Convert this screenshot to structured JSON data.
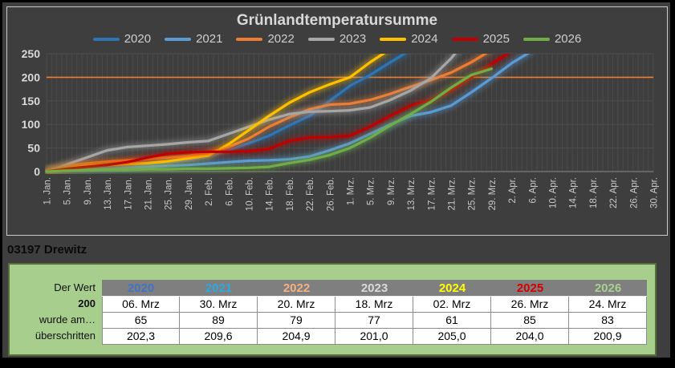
{
  "station": {
    "label": "03197 Drewitz"
  },
  "chart_data": {
    "type": "line",
    "title": "Grünlandtemperatursumme",
    "xlabel": "",
    "ylabel": "",
    "ylim": [
      0,
      250
    ],
    "y_ticks": [
      0,
      50,
      100,
      150,
      200,
      250
    ],
    "grid": "daily vertical gridlines and horizontal gridlines every 50, on dark background",
    "legend_position": "top",
    "x_step_days": 4,
    "x_tick_labels": [
      "1. Jan.",
      "5. Jan.",
      "9. Jan.",
      "13. Jan.",
      "17. Jan.",
      "21. Jan.",
      "25. Jan.",
      "29. Jan.",
      "2. Feb.",
      "6. Feb.",
      "10. Feb.",
      "14. Feb.",
      "18. Feb.",
      "22. Feb.",
      "26. Feb.",
      "1. Mrz.",
      "5. Mrz.",
      "9. Mrz.",
      "13. Mrz.",
      "17. Mrz.",
      "21. Mrz.",
      "25. Mrz.",
      "29. Mrz.",
      "2. Apr.",
      "6. Apr.",
      "10. Apr.",
      "14. Apr.",
      "18. Apr.",
      "22. Apr.",
      "26. Apr.",
      "30. Apr."
    ],
    "threshold": {
      "value": 200,
      "color": "#ED7D31"
    },
    "series": [
      {
        "name": "2020",
        "color": "#2E75B6",
        "values": [
          0,
          4,
          7,
          10,
          13,
          16,
          19,
          24,
          32,
          45,
          60,
          76,
          98,
          118,
          150,
          182,
          205,
          232,
          258,
          null,
          null,
          null,
          null,
          null,
          null,
          null,
          null,
          null,
          null,
          null,
          null
        ]
      },
      {
        "name": "2021",
        "color": "#5B9BD5",
        "values": [
          0,
          2,
          4,
          6,
          8,
          10,
          12,
          14,
          17,
          20,
          23,
          24,
          26,
          32,
          45,
          60,
          80,
          100,
          118,
          126,
          140,
          168,
          198,
          230,
          256,
          null,
          null,
          null,
          null,
          null,
          null
        ]
      },
      {
        "name": "2022",
        "color": "#ED7D31",
        "values": [
          2,
          12,
          17,
          21,
          24,
          27,
          30,
          33,
          40,
          52,
          70,
          95,
          115,
          132,
          142,
          144,
          152,
          165,
          180,
          194,
          210,
          232,
          258,
          null,
          null,
          null,
          null,
          null,
          null,
          null,
          null
        ]
      },
      {
        "name": "2023",
        "color": "#A6A6A6",
        "values": [
          0,
          15,
          30,
          45,
          52,
          55,
          58,
          62,
          65,
          80,
          95,
          110,
          122,
          127,
          128,
          130,
          136,
          152,
          172,
          198,
          240,
          292,
          null,
          null,
          null,
          null,
          null,
          null,
          null,
          null,
          null
        ]
      },
      {
        "name": "2024",
        "color": "#FFC000",
        "values": [
          0,
          8,
          12,
          14,
          16,
          18,
          22,
          28,
          34,
          58,
          88,
          118,
          146,
          168,
          185,
          200,
          232,
          260,
          null,
          null,
          null,
          null,
          null,
          null,
          null,
          null,
          null,
          null,
          null,
          null,
          null
        ]
      },
      {
        "name": "2025",
        "color": "#C00000",
        "values": [
          0,
          6,
          10,
          14,
          20,
          30,
          38,
          41,
          42,
          42,
          43,
          48,
          65,
          72,
          73,
          76,
          95,
          118,
          140,
          152,
          172,
          200,
          228,
          256,
          null,
          null,
          null,
          null,
          null,
          null,
          null
        ]
      },
      {
        "name": "2026",
        "color": "#70AD47",
        "values": [
          0,
          2,
          3,
          4,
          4,
          5,
          5,
          6,
          6,
          7,
          8,
          10,
          18,
          25,
          35,
          50,
          72,
          98,
          122,
          148,
          178,
          205,
          218,
          null,
          null,
          null,
          null,
          null,
          null,
          null,
          null
        ]
      }
    ]
  },
  "info_table": {
    "row_labels": [
      "Der Wert",
      "200",
      "wurde am…",
      "überschritten"
    ],
    "columns": [
      {
        "label": "2020",
        "color": "#4472C4",
        "date": "06. Mrz",
        "day": "65",
        "value": "202,3"
      },
      {
        "label": "2021",
        "color": "#2BA9E1",
        "date": "30. Mrz",
        "day": "89",
        "value": "209,6"
      },
      {
        "label": "2022",
        "color": "#F4B183",
        "date": "20. Mrz",
        "day": "79",
        "value": "204,9"
      },
      {
        "label": "2023",
        "color": "#D9D9D9",
        "date": "18. Mrz",
        "day": "77",
        "value": "201,0"
      },
      {
        "label": "2024",
        "color": "#FFFF00",
        "date": "02. Mrz",
        "day": "61",
        "value": "205,0"
      },
      {
        "label": "2025",
        "color": "#D40000",
        "date": "26. Mrz",
        "day": "85",
        "value": "204,0"
      },
      {
        "label": "2026",
        "color": "#A9D08E",
        "date": "24. Mrz",
        "day": "83",
        "value": "200,9"
      }
    ]
  }
}
